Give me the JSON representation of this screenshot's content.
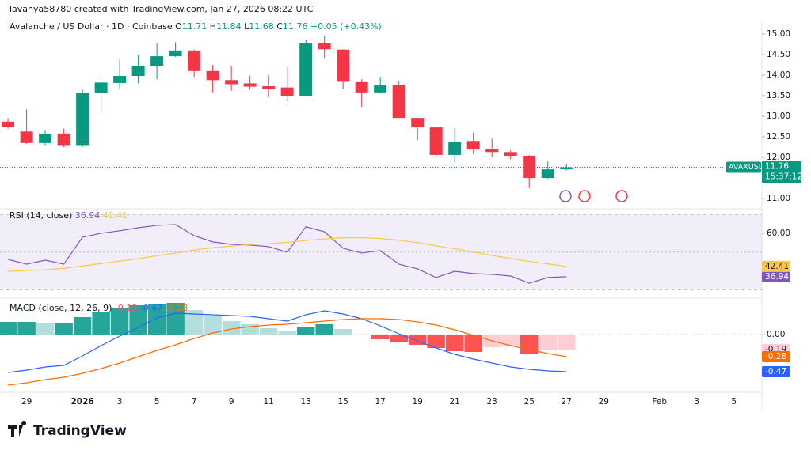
{
  "header": {
    "credit": "lavanya58780 created with TradingView.com, Jan 27, 2026 08:22 UTC",
    "brand": "TradingView"
  },
  "chart_data": [
    {
      "type": "candlestick",
      "title": "Avalanche / US Dollar · 1D · Coinbase",
      "symbol": "AVAXUSD",
      "countdown": "15:37:12",
      "ohlc_labels": [
        "O",
        "H",
        "L",
        "C"
      ],
      "change": "+0.05 (+0.43%)",
      "up_color": "#089981",
      "down_color": "#f23645",
      "x": [
        0,
        1,
        2,
        3,
        4,
        5,
        6,
        7,
        8,
        9,
        10,
        11,
        12,
        13,
        14,
        15,
        16,
        17,
        18,
        19,
        20,
        21,
        22,
        23,
        24,
        25,
        26,
        27,
        28,
        29,
        30
      ],
      "open": [
        12.87,
        12.63,
        12.35,
        12.58,
        12.3,
        13.57,
        13.81,
        13.98,
        14.23,
        14.46,
        14.6,
        14.1,
        13.88,
        13.8,
        13.73,
        13.7,
        13.5,
        14.77,
        14.62,
        13.83,
        13.58,
        13.77,
        12.96,
        12.73,
        12.06,
        12.4,
        12.21,
        12.13,
        12.04,
        11.5,
        11.71
      ],
      "high": [
        12.95,
        13.17,
        12.65,
        12.7,
        13.65,
        13.96,
        14.38,
        14.5,
        14.77,
        14.8,
        14.62,
        14.25,
        14.21,
        13.99,
        14.0,
        14.2,
        14.86,
        14.96,
        14.63,
        13.9,
        13.96,
        13.85,
        12.97,
        12.75,
        12.71,
        12.6,
        12.46,
        12.17,
        12.06,
        11.9,
        11.84
      ],
      "low": [
        12.7,
        12.33,
        12.3,
        12.25,
        12.25,
        13.1,
        13.67,
        13.8,
        13.9,
        14.44,
        13.96,
        13.58,
        13.62,
        13.65,
        13.46,
        13.35,
        13.5,
        14.42,
        13.67,
        13.23,
        13.56,
        12.96,
        12.42,
        12.02,
        11.88,
        12.08,
        12.0,
        11.96,
        11.25,
        11.48,
        11.68
      ],
      "close": [
        12.74,
        12.35,
        12.58,
        12.3,
        13.57,
        13.82,
        13.98,
        14.23,
        14.46,
        14.6,
        14.1,
        13.88,
        13.78,
        13.72,
        13.67,
        13.5,
        14.77,
        14.63,
        13.84,
        13.58,
        13.75,
        12.96,
        12.73,
        12.06,
        12.38,
        12.19,
        12.13,
        12.04,
        11.5,
        11.71,
        11.76
      ],
      "ylim": [
        10.79,
        15.25
      ],
      "yticks": [
        {
          "value": 11,
          "label": "11.00"
        },
        {
          "value": 12,
          "label": "12.00"
        },
        {
          "value": 12.5,
          "label": "12.50"
        },
        {
          "value": 13,
          "label": "13.00"
        },
        {
          "value": 13.5,
          "label": "13.50"
        },
        {
          "value": 14,
          "label": "14.00"
        },
        {
          "value": 14.5,
          "label": "14.50"
        },
        {
          "value": 15,
          "label": "15.00"
        }
      ],
      "xticks": [
        {
          "value": 1,
          "label": "29"
        },
        {
          "value": 4,
          "label": "2026"
        },
        {
          "value": 6,
          "label": "3"
        },
        {
          "value": 8,
          "label": "5"
        },
        {
          "value": 10,
          "label": "7"
        },
        {
          "value": 12,
          "label": "9"
        },
        {
          "value": 14,
          "label": "11"
        },
        {
          "value": 16,
          "label": "13"
        },
        {
          "value": 18,
          "label": "15"
        },
        {
          "value": 20,
          "label": "17"
        },
        {
          "value": 22,
          "label": "19"
        },
        {
          "value": 24,
          "label": "21"
        },
        {
          "value": 26,
          "label": "23"
        },
        {
          "value": 28,
          "label": "25"
        },
        {
          "value": 30,
          "label": "27"
        },
        {
          "value": 32,
          "label": "29"
        },
        {
          "value": 35,
          "label": "Feb"
        },
        {
          "value": 37,
          "label": "3"
        },
        {
          "value": 39,
          "label": "5"
        }
      ],
      "xlim": [
        -0.43,
        40.5
      ]
    },
    {
      "type": "line",
      "title": "RSI (14, close)",
      "band": [
        30,
        70
      ],
      "midline": 50,
      "band_color": "#7e57c2",
      "series": [
        {
          "color": "#7e57c2",
          "values": [
            46.1,
            43.6,
            45.7,
            43.6,
            57.9,
            60.0,
            61.3,
            62.9,
            64.2,
            64.6,
            58.7,
            55.4,
            54.1,
            53.7,
            52.9,
            49.9,
            63.4,
            60.8,
            52.0,
            49.5,
            50.8,
            43.6,
            41.1,
            36.5,
            39.8,
            38.6,
            38.2,
            37.3,
            33.5,
            36.5,
            36.94
          ]
        },
        {
          "color": "#f7c948",
          "values": [
            39.8,
            40.2,
            40.6,
            41.4,
            42.6,
            43.9,
            45.2,
            46.4,
            48.1,
            49.4,
            51.1,
            52.3,
            53.2,
            54.0,
            54.4,
            55.2,
            56.1,
            57.0,
            57.6,
            57.6,
            57.2,
            56.3,
            55.0,
            53.3,
            51.7,
            50.0,
            48.3,
            46.6,
            45.0,
            43.7,
            42.41
          ]
        }
      ],
      "ylim": [
        26.8,
        71.3
      ],
      "yticks": [
        {
          "value": 60,
          "label": "60.00"
        }
      ]
    },
    {
      "type": "macd",
      "title": "MACD (close, 12, 26, 9)",
      "values": [
        0.16,
        0.16,
        0.15,
        0.15,
        0.22,
        0.29,
        0.34,
        0.37,
        0.39,
        0.4,
        0.31,
        0.23,
        0.17,
        0.13,
        0.08,
        0.04,
        0.1,
        0.13,
        0.07,
        0.0,
        -0.06,
        -0.1,
        -0.13,
        -0.17,
        -0.21,
        -0.22,
        -0.16,
        -0.15,
        -0.24,
        -0.2,
        -0.19
      ],
      "bar_colors": {
        "up_rising": "#26a69a",
        "up_falling": "#b2dfdb",
        "down_falling": "#ff5252",
        "down_rising": "#ffcdd2"
      },
      "series": [
        {
          "color": "#2962ff",
          "values": [
            -0.48,
            -0.45,
            -0.41,
            -0.39,
            -0.27,
            -0.14,
            -0.02,
            0.09,
            0.21,
            0.27,
            0.26,
            0.25,
            0.24,
            0.23,
            0.2,
            0.17,
            0.25,
            0.3,
            0.26,
            0.2,
            0.11,
            0.01,
            -0.08,
            -0.17,
            -0.25,
            -0.31,
            -0.36,
            -0.41,
            -0.44,
            -0.46,
            -0.47
          ]
        },
        {
          "color": "#ff6d00",
          "values": [
            -0.64,
            -0.61,
            -0.57,
            -0.54,
            -0.49,
            -0.43,
            -0.36,
            -0.28,
            -0.2,
            -0.13,
            -0.05,
            0.02,
            0.07,
            0.1,
            0.12,
            0.13,
            0.15,
            0.17,
            0.19,
            0.2,
            0.2,
            0.19,
            0.16,
            0.12,
            0.06,
            -0.01,
            -0.08,
            -0.14,
            -0.19,
            -0.24,
            -0.28
          ]
        }
      ],
      "ylim": [
        -0.69,
        0.43
      ],
      "yticks": [
        {
          "value": 0,
          "label": "0.00"
        }
      ]
    }
  ]
}
